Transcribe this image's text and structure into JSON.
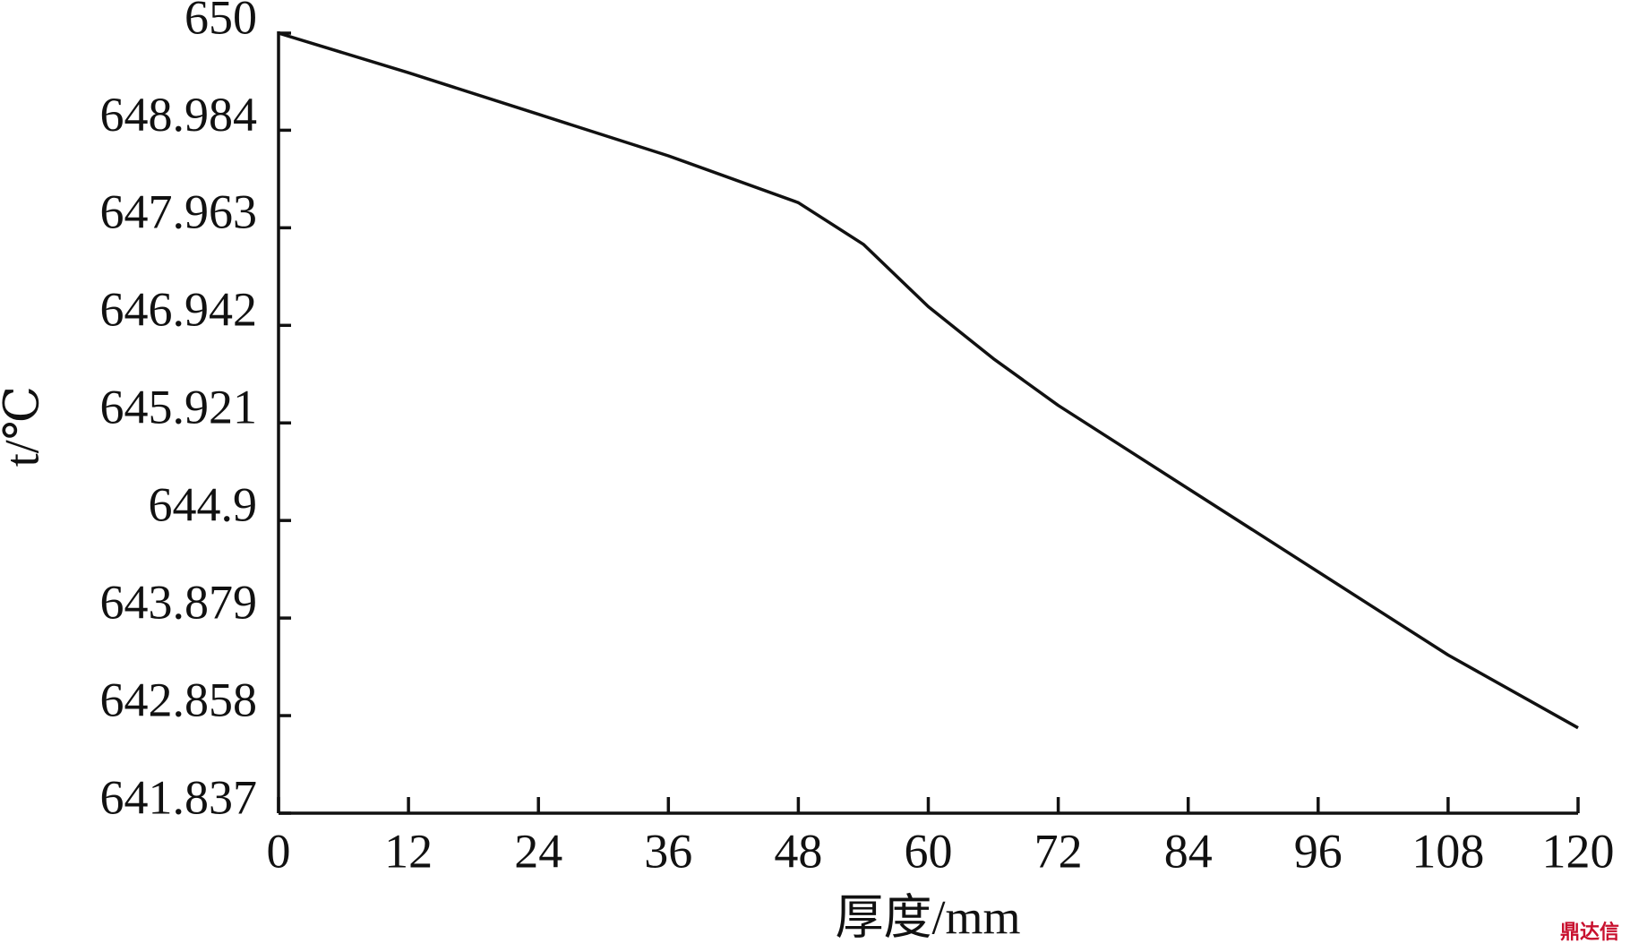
{
  "chart_data": {
    "type": "line",
    "x_label": "厚度/mm",
    "y_label": "t/℃",
    "watermark": "鼎达信",
    "x": [
      0,
      12,
      24,
      36,
      48,
      54,
      60,
      66,
      72,
      84,
      96,
      108,
      120
    ],
    "values": [
      650,
      649.586,
      649.151,
      648.716,
      648.226,
      647.79,
      647.138,
      646.594,
      646.104,
      645.233,
      644.363,
      643.492,
      642.73
    ],
    "color": "#111111",
    "xlim": [
      0,
      120
    ],
    "xticks": [
      0,
      12,
      24,
      36,
      48,
      60,
      72,
      84,
      96,
      108,
      120
    ],
    "ylim": [
      641.837,
      650
    ],
    "yticks": [
      641.837,
      642.858,
      643.879,
      644.9,
      645.921,
      646.942,
      647.963,
      648.984,
      650
    ],
    "grid": false
  }
}
